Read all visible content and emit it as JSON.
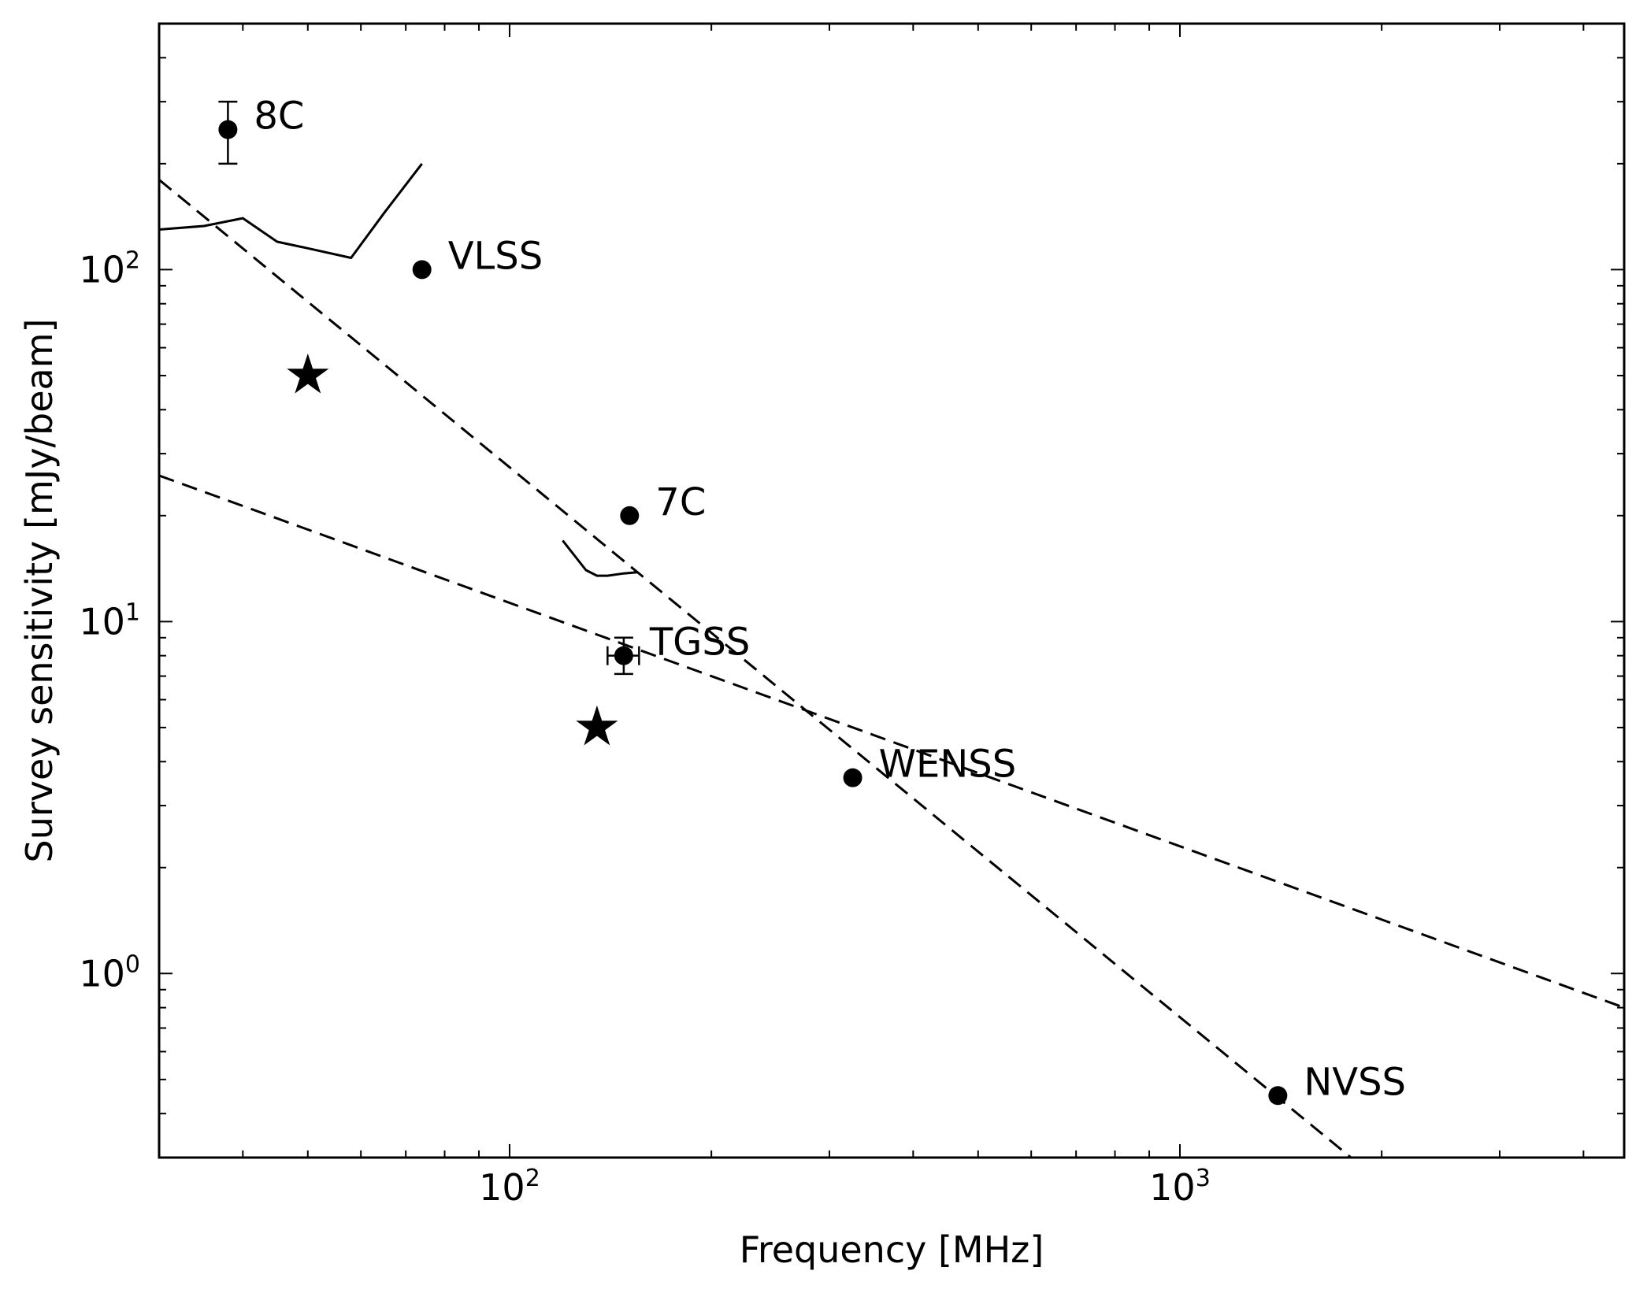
{
  "chart_data": {
    "type": "scatter",
    "title": "",
    "xlabel": "Frequency [MHz]",
    "ylabel": "Survey sensitivity [mJy/beam]",
    "xscale": "log",
    "yscale": "log",
    "xlim": [
      30,
      4600
    ],
    "ylim": [
      0.3,
      500
    ],
    "xticks": [
      {
        "base": "10",
        "exp": "2",
        "value": 100
      },
      {
        "base": "10",
        "exp": "3",
        "value": 1000
      }
    ],
    "yticks": [
      {
        "base": "10",
        "exp": "0",
        "value": 1
      },
      {
        "base": "10",
        "exp": "1",
        "value": 10
      },
      {
        "base": "10",
        "exp": "2",
        "value": 100
      }
    ],
    "surveys": [
      {
        "label": "8C",
        "x": 38,
        "y": 250,
        "yerr_low": 200,
        "yerr_high": 300
      },
      {
        "label": "VLSS",
        "x": 74,
        "y": 100
      },
      {
        "label": "7C",
        "x": 151,
        "y": 20
      },
      {
        "label": "TGSS",
        "x": 148,
        "y": 8,
        "yerr_low": 7.1,
        "yerr_high": 9.0,
        "xerr_low": 140,
        "xerr_high": 156
      },
      {
        "label": "WENSS",
        "x": 325,
        "y": 3.6
      },
      {
        "label": "NVSS",
        "x": 1400,
        "y": 0.45
      }
    ],
    "stars": [
      {
        "x": 50,
        "y": 50
      },
      {
        "x": 135,
        "y": 5
      }
    ],
    "solid_curves": [
      {
        "points": [
          [
            30,
            130
          ],
          [
            35,
            133
          ],
          [
            40,
            140
          ],
          [
            45,
            120
          ],
          [
            50,
            115
          ],
          [
            58,
            108
          ],
          [
            65,
            145
          ],
          [
            74,
            200
          ]
        ]
      },
      {
        "points": [
          [
            120,
            17
          ],
          [
            130,
            14
          ],
          [
            135,
            13.5
          ],
          [
            140,
            13.5
          ],
          [
            148,
            13.7
          ],
          [
            155,
            13.8
          ]
        ]
      }
    ],
    "dashed_lines": [
      {
        "points": [
          [
            30,
            180
          ],
          [
            1800,
            0.3
          ]
        ]
      },
      {
        "points": [
          [
            30,
            26
          ],
          [
            4600,
            0.8
          ]
        ]
      }
    ]
  }
}
